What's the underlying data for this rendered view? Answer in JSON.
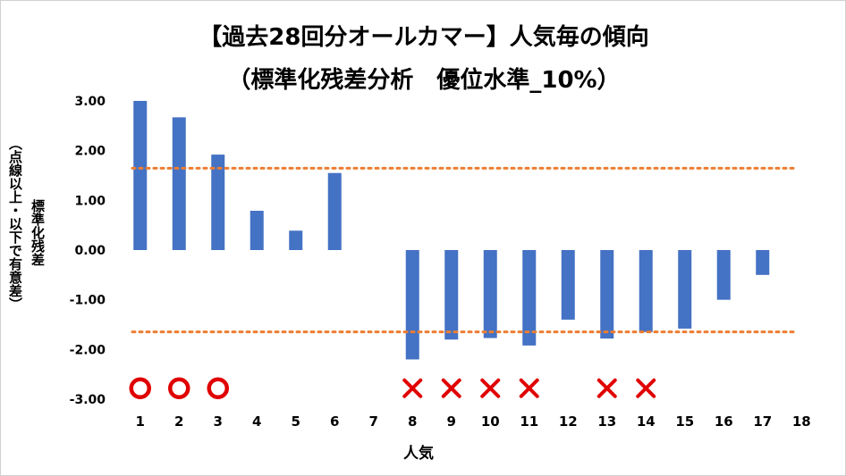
{
  "chart_data": {
    "type": "bar",
    "title_line1": "【過去28回分オールカマー】人気毎の傾向",
    "title_line2": "（標準化残差分析　優位水準_10%）",
    "ylabel": "標準化残差",
    "ylabel_note": "（点線以上・以下で有意差）",
    "xlabel": "人気",
    "ylim": [
      -3,
      3
    ],
    "ytick_labels": [
      "3.00",
      "2.00",
      "1.00",
      "0.00",
      "-1.00",
      "-2.00",
      "-3.00"
    ],
    "ytick_values": [
      3,
      2,
      1,
      0,
      -1,
      -2,
      -3
    ],
    "categories": [
      "1",
      "2",
      "3",
      "4",
      "5",
      "6",
      "7",
      "8",
      "9",
      "10",
      "11",
      "12",
      "13",
      "14",
      "15",
      "16",
      "17",
      "18"
    ],
    "values": [
      3.0,
      2.67,
      1.92,
      0.79,
      0.39,
      1.55,
      0,
      -2.2,
      -1.8,
      -1.77,
      -1.92,
      -1.4,
      -1.78,
      -1.65,
      -1.58,
      -1.0,
      -0.5,
      0
    ],
    "significance_lines": [
      1.645,
      -1.645
    ],
    "markers": [
      {
        "category": "1",
        "symbol": "circle"
      },
      {
        "category": "2",
        "symbol": "circle"
      },
      {
        "category": "3",
        "symbol": "circle"
      },
      {
        "category": "8",
        "symbol": "cross"
      },
      {
        "category": "9",
        "symbol": "cross"
      },
      {
        "category": "10",
        "symbol": "cross"
      },
      {
        "category": "11",
        "symbol": "cross"
      },
      {
        "category": "13",
        "symbol": "cross"
      },
      {
        "category": "14",
        "symbol": "cross"
      }
    ],
    "bar_color": "#4472C4",
    "line_color": "#ED7D31",
    "marker_color": "#E00000",
    "grid": false,
    "legend": "none"
  }
}
